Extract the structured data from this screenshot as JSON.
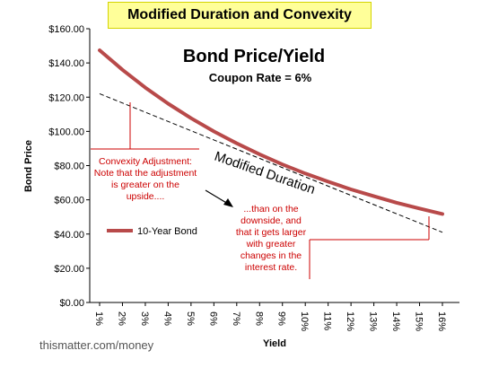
{
  "banner_title": "Modified Duration and Convexity",
  "watermark": "thismatter.com/money",
  "colors": {
    "bond_line": "#b84a4a",
    "tangent_line": "#000000",
    "annotation": "#cc0000"
  },
  "chart_data": {
    "type": "line",
    "title": "Bond Price/Yield",
    "subtitle": "Coupon Rate = 6%",
    "xlabel": "Yield",
    "ylabel": "Bond Price",
    "ylim": [
      0,
      160
    ],
    "yticks": [
      "$0.00",
      "$20.00",
      "$40.00",
      "$60.00",
      "$80.00",
      "$100.00",
      "$120.00",
      "$140.00",
      "$160.00"
    ],
    "y_tick_values": [
      0,
      20,
      40,
      60,
      80,
      100,
      120,
      140,
      160
    ],
    "categories": [
      "1%",
      "2%",
      "3%",
      "4%",
      "5%",
      "6%",
      "7%",
      "8%",
      "9%",
      "10%",
      "11%",
      "12%",
      "13%",
      "14%",
      "15%",
      "16%"
    ],
    "grid": false,
    "legend_position": "left",
    "series": [
      {
        "name": "10-Year Bond",
        "values": [
          147.4,
          136.0,
          125.6,
          116.2,
          107.7,
          100.0,
          93.0,
          86.6,
          80.7,
          75.4,
          70.6,
          66.1,
          62.1,
          58.3,
          54.9,
          51.7
        ]
      }
    ],
    "tangent": {
      "label": "Modified Duration",
      "x_start": "1%",
      "y_start": 122,
      "x_end": "16%",
      "y_end": 41
    },
    "annotations": [
      {
        "id": "convexity-upside",
        "lines": [
          "Convexity Adjustment:",
          "Note that the adjustment",
          "is greater on the",
          "upside...."
        ]
      },
      {
        "id": "convexity-downside",
        "lines": [
          "...than on the",
          "downside, and",
          "that it gets larger",
          "with greater",
          "changes in the",
          "interest rate."
        ]
      }
    ]
  }
}
